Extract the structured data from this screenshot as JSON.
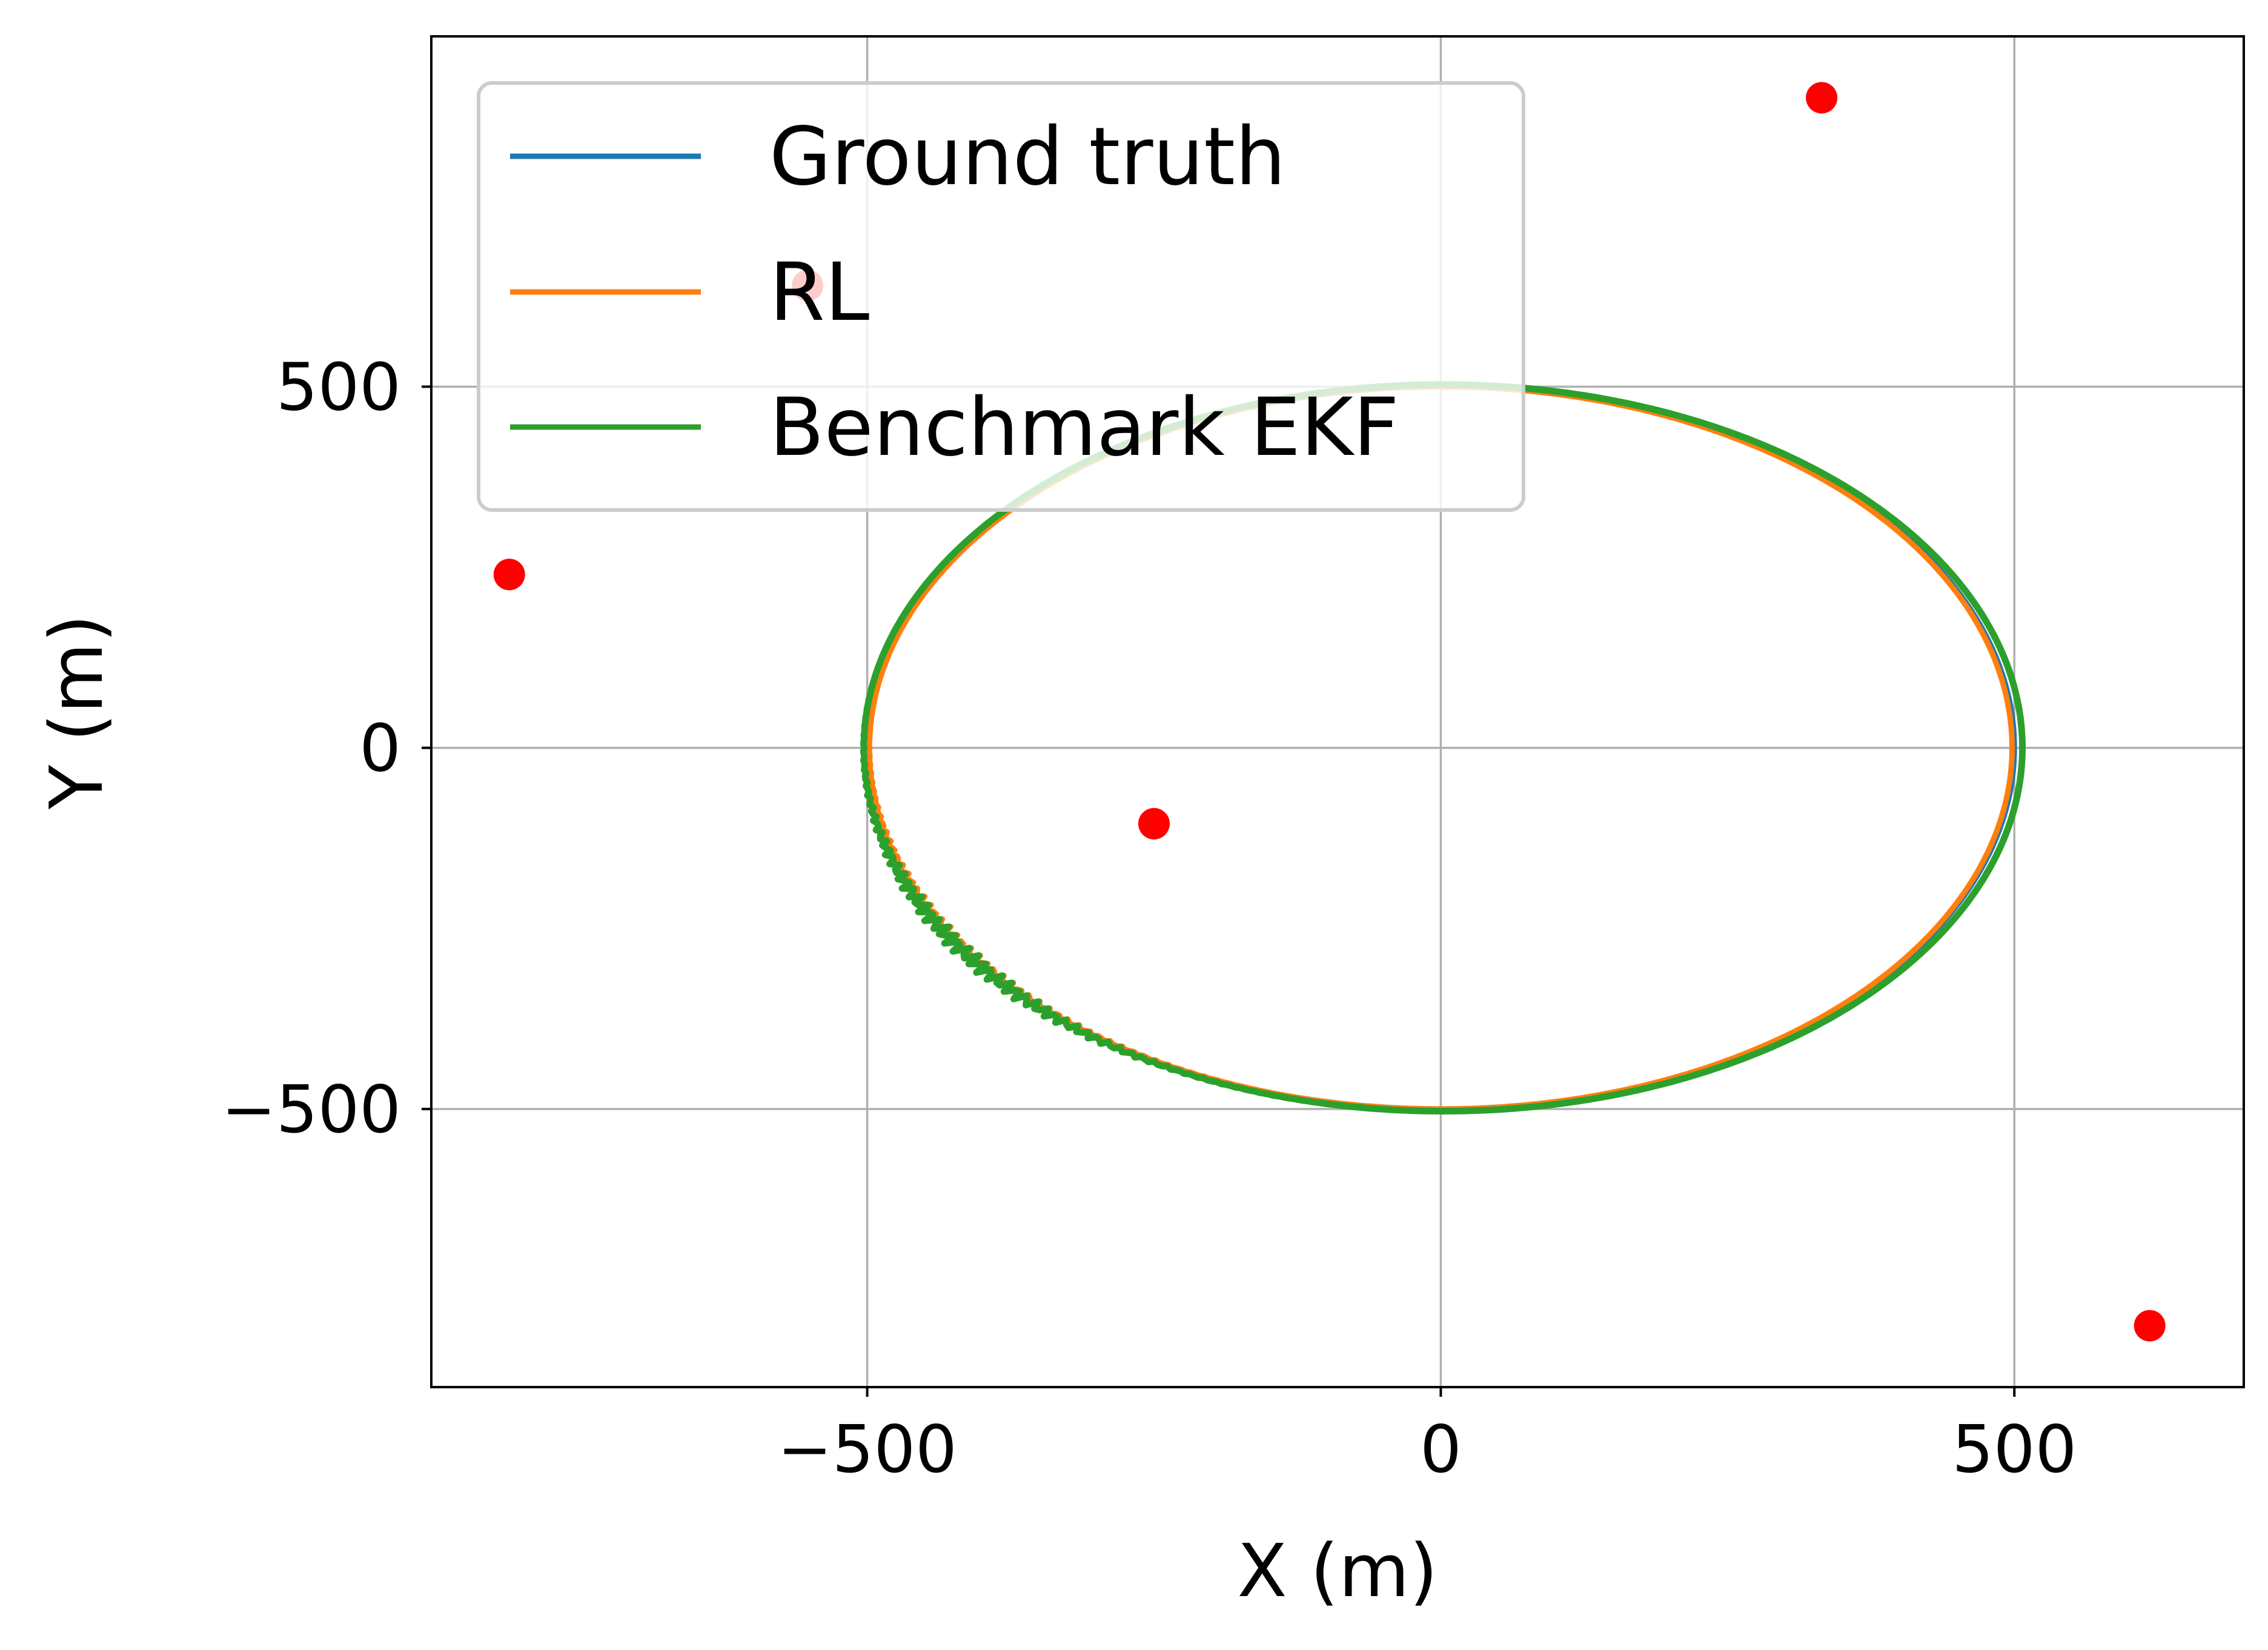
{
  "chart_data": {
    "type": "line",
    "title": "",
    "xlabel": "X (m)",
    "ylabel": "Y (m)",
    "xlim": [
      -880,
      700
    ],
    "ylim": [
      -885,
      985
    ],
    "xticks": [
      -500,
      0,
      500
    ],
    "yticks": [
      -500,
      0,
      500
    ],
    "xtick_labels": [
      "−500",
      "0",
      "500"
    ],
    "ytick_labels": [
      "−500",
      "0",
      "500"
    ],
    "grid": true,
    "legend_position": "top-left",
    "series": [
      {
        "name": "Ground truth",
        "color": "#1f77b4",
        "shape": "ellipse",
        "center": [
          0,
          0
        ],
        "semi_axes": [
          500,
          500
        ]
      },
      {
        "name": "RL",
        "color": "#ff7f0e",
        "shape": "ellipse",
        "center": [
          0,
          0
        ],
        "semi_axes": [
          498,
          500
        ],
        "noise": "small deviations near (-420, -270)"
      },
      {
        "name": "Benchmark EKF",
        "color": "#2ca02c",
        "shape": "ellipse",
        "center": [
          2,
          0
        ],
        "semi_axes": [
          505,
          503
        ],
        "noise": "jitter around (-480, -180)"
      }
    ],
    "anchors": {
      "name": "anchors",
      "color": "#ff0000",
      "points": [
        {
          "x": -812,
          "y": 240
        },
        {
          "x": -552,
          "y": 640
        },
        {
          "x": -250,
          "y": -105
        },
        {
          "x": 332,
          "y": 900
        },
        {
          "x": 618,
          "y": -800
        }
      ]
    }
  }
}
